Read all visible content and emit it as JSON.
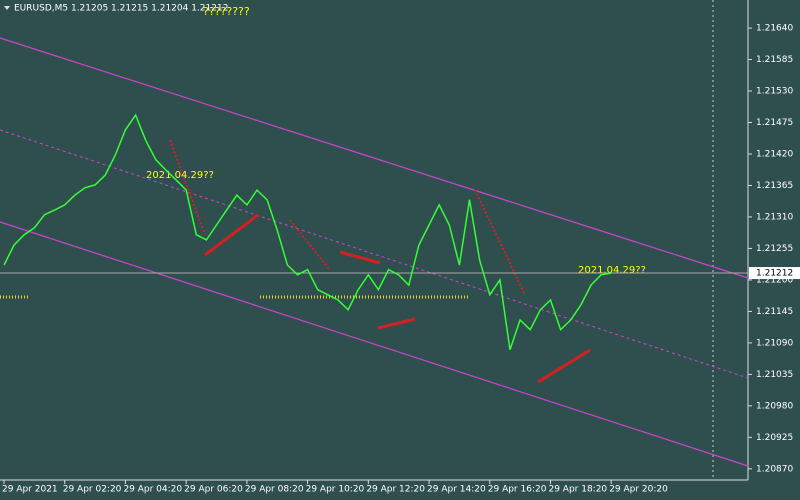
{
  "chart_data": {
    "type": "line",
    "title": "EURUSD,M5  1.21205 1.21215 1.21204 1.21212",
    "annotations": [
      "????????",
      "2021.04.29??",
      "2021.04.29??"
    ],
    "current_price": 1.21212,
    "categories": [
      "29 Apr 2021",
      null,
      null,
      null,
      null,
      null,
      "29 Apr 02:20",
      null,
      null,
      null,
      null,
      null,
      "29 Apr 04:20",
      null,
      null,
      null,
      null,
      null,
      "29 Apr 06:20",
      null,
      null,
      null,
      null,
      null,
      "29 Apr 08:20",
      null,
      null,
      null,
      null,
      null,
      "29 Apr 10:20",
      null,
      null,
      null,
      null,
      null,
      "29 Apr 12:20",
      null,
      null,
      null,
      null,
      null,
      "29 Apr 14:20",
      null,
      null,
      null,
      null,
      null,
      "29 Apr 16:20",
      null,
      null,
      null,
      null,
      null,
      "29 Apr 18:20",
      null,
      null,
      null,
      null,
      null,
      "29 Apr 20:20"
    ],
    "series": [
      {
        "name": "EURUSD",
        "color": "#33ff33",
        "values": [
          1.21226,
          1.21261,
          1.21279,
          1.21291,
          1.21314,
          1.21322,
          1.21331,
          1.21348,
          1.21361,
          1.21366,
          1.21383,
          1.21418,
          1.21462,
          1.21488,
          1.21444,
          1.2141,
          1.21392,
          1.21375,
          1.21357,
          1.21279,
          1.2127,
          1.21296,
          1.21322,
          1.21348,
          1.21331,
          1.21357,
          1.2134,
          1.21287,
          1.21226,
          1.21209,
          1.21218,
          1.21183,
          1.21174,
          1.21165,
          1.21148,
          1.21183,
          1.21209,
          1.21183,
          1.21218,
          1.21209,
          1.21191,
          1.21261,
          1.21296,
          1.21331,
          1.21296,
          1.21226,
          1.2134,
          1.21235,
          1.21174,
          1.212,
          1.21078,
          1.2113,
          1.21113,
          1.21148,
          1.21165,
          1.21113,
          1.2113,
          1.21156,
          1.21191,
          1.21209,
          1.21212
        ]
      }
    ],
    "ylim": [
      1.20854,
      1.21689
    ],
    "yticks": [
      {
        "value": 1.2164,
        "label": "1.21640"
      },
      1.21585,
      {
        "value": 1.2153,
        "label": "1.21530"
      },
      1.21475,
      {
        "value": 1.2142,
        "label": "1.21420"
      },
      1.21365,
      {
        "value": 1.2131,
        "label": "1.21310"
      },
      1.21255,
      {
        "value": 1.212,
        "label": "1.21200"
      },
      1.21145,
      {
        "value": 1.2109,
        "label": "1.21090"
      },
      1.21035,
      {
        "value": 1.2098,
        "label": "1.20980"
      },
      1.20925,
      {
        "value": 1.2087,
        "label": "1.20870"
      }
    ],
    "grid": false
  }
}
